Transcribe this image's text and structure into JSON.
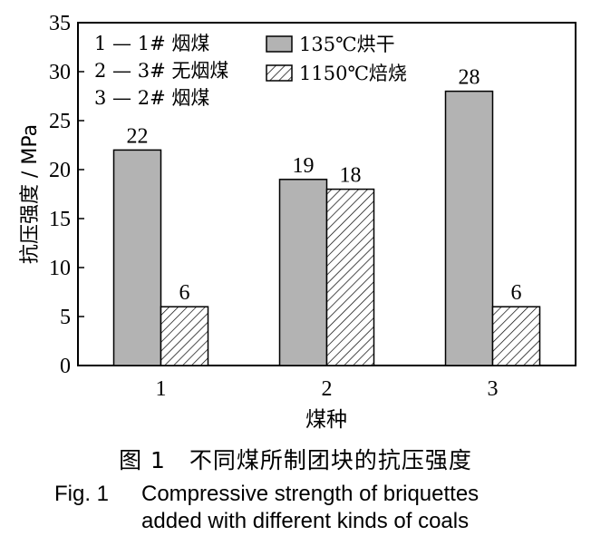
{
  "chart_data": {
    "type": "bar",
    "categories": [
      "1",
      "2",
      "3"
    ],
    "series": [
      {
        "name": "135℃烘干",
        "values": [
          22,
          19,
          28
        ],
        "pattern": "solid",
        "color": "#b3b3b3"
      },
      {
        "name": "1150℃焙烧",
        "values": [
          6,
          18,
          6
        ],
        "pattern": "hatch",
        "color": "#ffffff"
      }
    ],
    "data_labels": [
      "22",
      "6",
      "19",
      "18",
      "28",
      "6"
    ],
    "xlabel": "煤种",
    "ylabel": "抗压强度 / MPa",
    "ylim": [
      0,
      35
    ],
    "yticks": [
      0,
      5,
      10,
      15,
      20,
      25,
      30,
      35
    ],
    "grid": false,
    "legend_position": "top-right",
    "coal_key": [
      "1 — 1# 烟煤",
      "2 — 3# 无烟煤",
      "3 — 2# 烟煤"
    ]
  },
  "caption": {
    "cn": "图 1　不同煤所制团块的抗压强度",
    "en_number": "Fig. 1",
    "en_line1": "Compressive strength of briquettes",
    "en_line2": "added with different kinds of coals"
  }
}
